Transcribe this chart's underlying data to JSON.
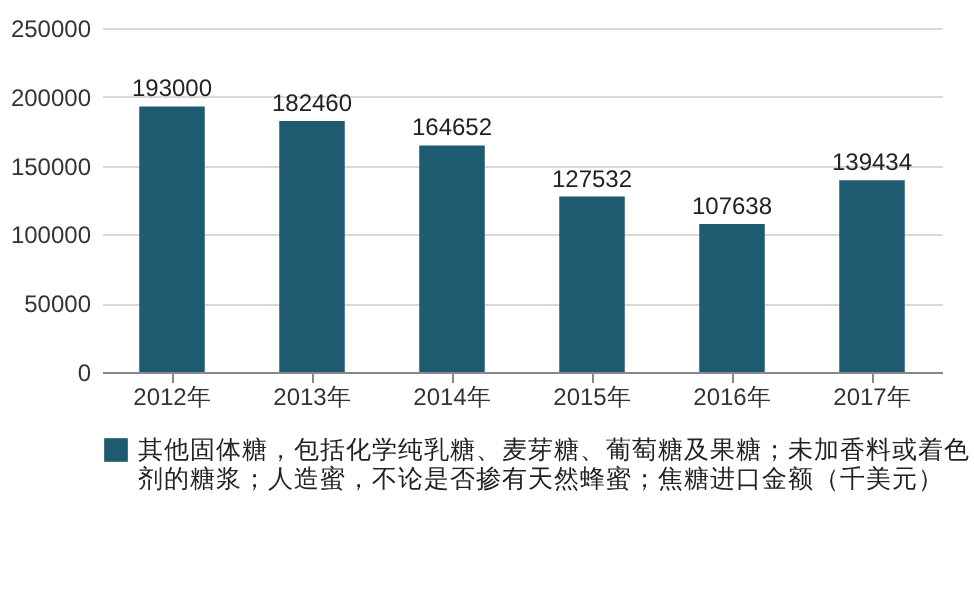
{
  "chart_data": {
    "type": "bar",
    "categories": [
      "2012年",
      "2013年",
      "2014年",
      "2015年",
      "2016年",
      "2017年"
    ],
    "series": [
      {
        "name": "其他固体糖，包括化学纯乳糖、麦芽糖、葡萄糖及果糖；未加香料或着色剂的糖浆；人造蜜，不论是否掺有天然蜂蜜；焦糖进口金额（千美元）",
        "color": "#1f5b70",
        "values": [
          193000,
          182460,
          164652,
          127532,
          107638,
          139434
        ]
      }
    ],
    "ylim": [
      0,
      250000
    ],
    "yticks": [
      0,
      50000,
      100000,
      150000,
      200000,
      250000
    ],
    "grid": "y",
    "legend": "bottom",
    "data_labels": true
  }
}
